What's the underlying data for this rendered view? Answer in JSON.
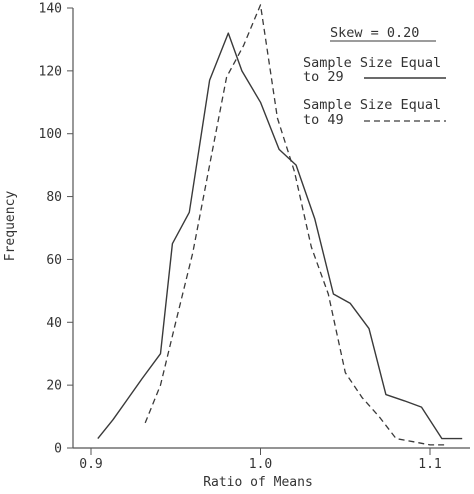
{
  "chart_data": {
    "type": "line",
    "title": "Skew = 0.20",
    "xlabel": "Ratio of Means",
    "ylabel": "Frequency",
    "xlim": [
      0.9,
      1.12
    ],
    "ylim": [
      0,
      140
    ],
    "xticks": [
      0.9,
      1.0,
      1.1
    ],
    "xtick_labels": [
      "0.9",
      "1.0",
      "1.1"
    ],
    "yticks": [
      0,
      20,
      40,
      60,
      80,
      100,
      120,
      140
    ],
    "ytick_labels": [
      "0",
      "20",
      "40",
      "60",
      "80",
      "100",
      "120",
      "140"
    ],
    "grid": false,
    "legend_position": "top-right",
    "series": [
      {
        "name": "Sample Size Equal to 29",
        "legend_lines": [
          "Sample Size Equal",
          "to 29"
        ],
        "style": "solid",
        "x": [
          0.904,
          0.913,
          0.93,
          0.941,
          0.948,
          0.958,
          0.97,
          0.981,
          0.989,
          1.0,
          1.011,
          1.021,
          1.032,
          1.043,
          1.053,
          1.064,
          1.074,
          1.085,
          1.095,
          1.107,
          1.119
        ],
        "y": [
          3,
          9,
          22,
          30,
          65,
          75,
          117,
          132,
          120,
          110,
          95,
          90,
          73,
          49,
          46,
          38,
          17,
          15,
          13,
          3,
          3
        ]
      },
      {
        "name": "Sample Size Equal to 49",
        "legend_lines": [
          "Sample Size Equal",
          "to 49"
        ],
        "style": "dashed",
        "x": [
          0.932,
          0.941,
          0.95,
          0.96,
          0.97,
          0.98,
          0.99,
          1.0,
          1.01,
          1.02,
          1.03,
          1.04,
          1.05,
          1.06,
          1.07,
          1.08,
          1.09,
          1.1,
          1.11
        ],
        "y": [
          8,
          20,
          40,
          62,
          90,
          118,
          128,
          141,
          105,
          88,
          64,
          49,
          24,
          16,
          10,
          3,
          2,
          1,
          1
        ]
      }
    ]
  }
}
